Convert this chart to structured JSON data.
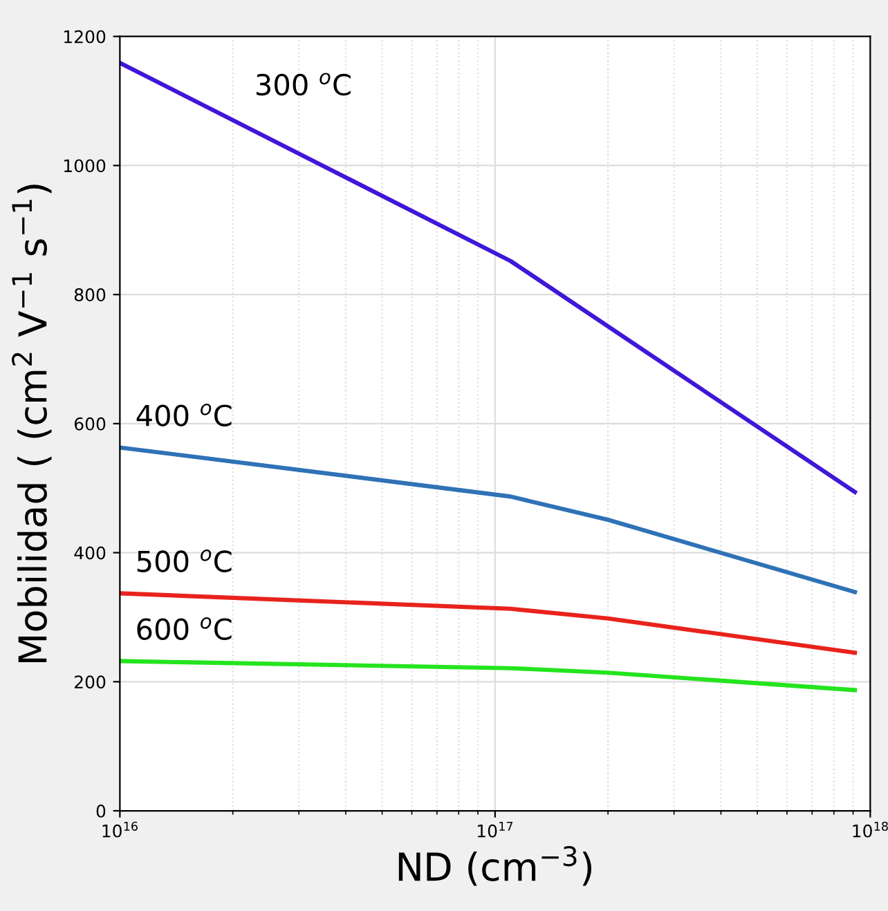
{
  "chart_data": {
    "type": "line",
    "xlabel": "ND (cm$^{−3}$)",
    "ylabel": "Mobilidad ( (cm$^{2}$ V$^{−1}$ s$^{−1}$)",
    "log": "x",
    "xlim": [
      1e+16,
      1e+18
    ],
    "xticks": [
      {
        "value": 1e+16,
        "label": "10$^{16}$"
      },
      {
        "value": 1e+17,
        "label": "10$^{17}$"
      },
      {
        "value": 1e+18,
        "label": "10$^{18}$"
      }
    ],
    "ylim": [
      0,
      1200
    ],
    "yticks": [
      0,
      200,
      400,
      600,
      800,
      1000,
      1200
    ],
    "grid": true,
    "line_style": "solid",
    "marker": "none",
    "series": [
      {
        "name": "300 $^{o}$C",
        "color": "#3f17d8",
        "x": [
          1e+16,
          1.1e+17,
          9.1e+17
        ],
        "values": [
          1159,
          852,
          494
        ]
      },
      {
        "name": "400 $^{o}$C",
        "color": "#2f72b6",
        "x": [
          1e+16,
          1.1e+17,
          2e+17,
          9.1e+17
        ],
        "values": [
          563,
          487,
          451,
          339
        ]
      },
      {
        "name": "500 $^{o}$C",
        "color": "#e8231c",
        "x": [
          1e+16,
          1.1e+17,
          2e+17,
          9.1e+17
        ],
        "values": [
          337,
          313,
          298,
          245
        ]
      },
      {
        "name": "600 $^{o}$C",
        "color": "#24e41e",
        "x": [
          1e+16,
          1.1e+17,
          2e+17,
          9.1e+17
        ],
        "values": [
          232,
          221,
          214,
          187
        ]
      }
    ]
  }
}
